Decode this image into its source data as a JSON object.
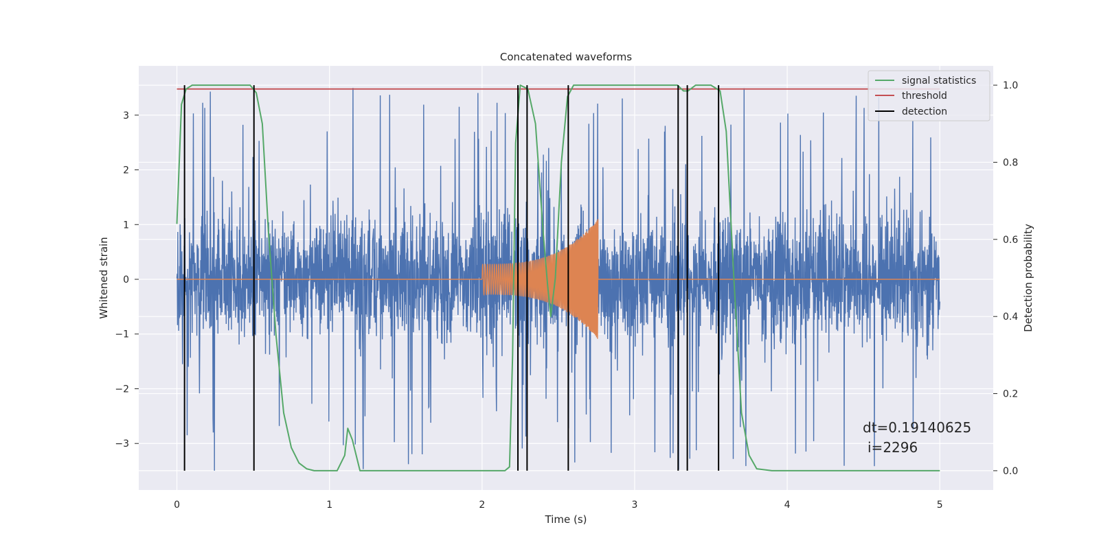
{
  "chart_data": {
    "type": "line",
    "title": "Concatenated waveforms",
    "xlabel": "Time (s)",
    "ylabel": "Whitened strain",
    "y2label": "Detection probability",
    "xlim": [
      -0.25,
      5.35
    ],
    "ylim": [
      -3.85,
      3.9
    ],
    "y2lim": [
      -0.05,
      1.05
    ],
    "x_ticks": [
      0,
      1,
      2,
      3,
      4,
      5
    ],
    "y_ticks": [
      -3,
      -2,
      -1,
      0,
      1,
      2,
      3
    ],
    "y2_ticks": [
      0.0,
      0.2,
      0.4,
      0.6,
      0.8,
      1.0
    ],
    "x_tick_labels": [
      "0",
      "1",
      "2",
      "3",
      "4",
      "5"
    ],
    "y_tick_labels": [
      "−3",
      "−2",
      "−1",
      "0",
      "1",
      "2",
      "3"
    ],
    "y2_tick_labels": [
      "0.0",
      "0.2",
      "0.4",
      "0.6",
      "0.8",
      "1.0"
    ],
    "grid": true,
    "legend_position": "top-right",
    "colors": {
      "background": "#eaeaf2",
      "grid": "#ffffff",
      "strain": "#4c72b0",
      "injection": "#dd8452",
      "signal_statistics": "#55a868",
      "threshold": "#c44e52",
      "detection": "#000000"
    },
    "strain_noise": {
      "x_range": [
        0,
        5
      ],
      "typical_amplitude": 0.7,
      "peak_amplitude": 3.5
    },
    "injection": {
      "x_start": 2.0,
      "x_end": 2.76,
      "start_amplitude": 0.28,
      "peak_amplitude": 1.1,
      "baseline": 0.0
    },
    "series": [
      {
        "name": "signal statistics",
        "axis": "right",
        "x": [
          0.0,
          0.03,
          0.06,
          0.1,
          0.2,
          0.3,
          0.4,
          0.48,
          0.52,
          0.56,
          0.6,
          0.65,
          0.7,
          0.75,
          0.8,
          0.85,
          0.9,
          1.0,
          1.05,
          1.1,
          1.12,
          1.15,
          1.2,
          1.25,
          1.5,
          2.0,
          2.15,
          2.18,
          2.2,
          2.22,
          2.25,
          2.3,
          2.35,
          2.4,
          2.43,
          2.45,
          2.48,
          2.52,
          2.56,
          2.6,
          2.7,
          3.0,
          3.2,
          3.28,
          3.32,
          3.35,
          3.4,
          3.5,
          3.56,
          3.6,
          3.65,
          3.7,
          3.75,
          3.8,
          3.9,
          4.0,
          4.5,
          5.0
        ],
        "y": [
          0.64,
          0.95,
          0.99,
          1.0,
          1.0,
          1.0,
          1.0,
          1.0,
          0.98,
          0.9,
          0.62,
          0.35,
          0.15,
          0.06,
          0.02,
          0.005,
          0.0,
          0.0,
          0.0,
          0.04,
          0.11,
          0.08,
          0.0,
          0.0,
          0.0,
          0.0,
          0.0,
          0.01,
          0.3,
          0.85,
          1.0,
          0.99,
          0.9,
          0.62,
          0.48,
          0.4,
          0.5,
          0.8,
          0.97,
          1.0,
          1.0,
          1.0,
          1.0,
          1.0,
          0.985,
          0.985,
          1.0,
          1.0,
          0.985,
          0.88,
          0.5,
          0.15,
          0.04,
          0.005,
          0.0,
          0.0,
          0.0,
          0.0
        ]
      },
      {
        "name": "threshold",
        "axis": "right",
        "x": [
          0.0,
          5.0
        ],
        "y": [
          0.99,
          0.99
        ]
      },
      {
        "name": "detection",
        "axis": "right",
        "type": "vlines",
        "x": [
          0.05,
          0.505,
          2.235,
          2.295,
          2.565,
          3.285,
          3.345,
          3.55
        ],
        "ymin": 0.0,
        "ymax": 1.0
      }
    ],
    "annotation": {
      "line1": "dt=0.19140625",
      "line2": "i=2296"
    }
  }
}
